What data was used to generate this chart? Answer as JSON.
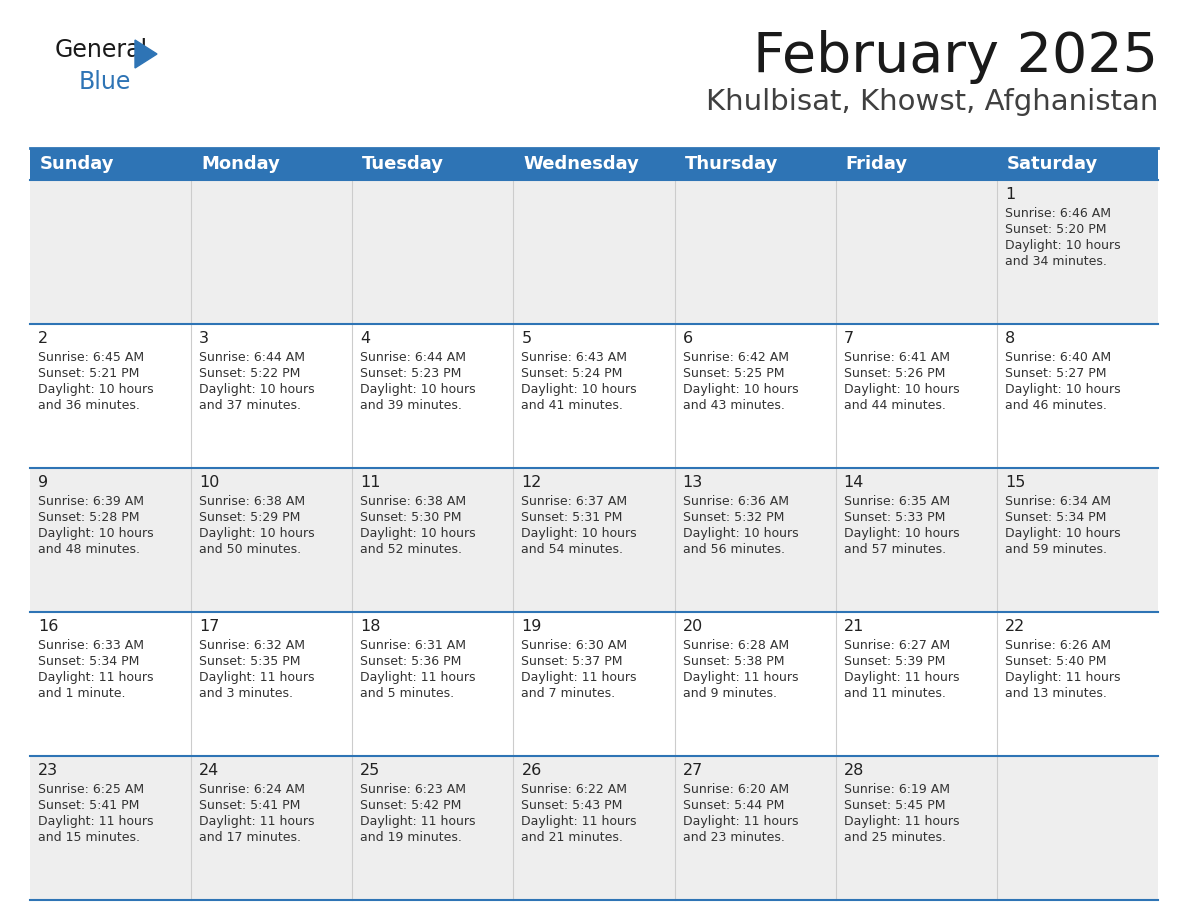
{
  "title": "February 2025",
  "subtitle": "Khulbisat, Khowst, Afghanistan",
  "header_bg": "#2E74B5",
  "header_text_color": "#FFFFFF",
  "day_names": [
    "Sunday",
    "Monday",
    "Tuesday",
    "Wednesday",
    "Thursday",
    "Friday",
    "Saturday"
  ],
  "row0_bg": "#EEEEEE",
  "row1_bg": "#FFFFFF",
  "row2_bg": "#EEEEEE",
  "row3_bg": "#FFFFFF",
  "row4_bg": "#EEEEEE",
  "border_color": "#2E74B5",
  "cell_divider_color": "#CCCCCC",
  "days": [
    {
      "day": 1,
      "col": 6,
      "row": 0,
      "sunrise": "6:46 AM",
      "sunset": "5:20 PM",
      "daylight_h": "10 hours",
      "daylight_m": "34 minutes."
    },
    {
      "day": 2,
      "col": 0,
      "row": 1,
      "sunrise": "6:45 AM",
      "sunset": "5:21 PM",
      "daylight_h": "10 hours",
      "daylight_m": "36 minutes."
    },
    {
      "day": 3,
      "col": 1,
      "row": 1,
      "sunrise": "6:44 AM",
      "sunset": "5:22 PM",
      "daylight_h": "10 hours",
      "daylight_m": "37 minutes."
    },
    {
      "day": 4,
      "col": 2,
      "row": 1,
      "sunrise": "6:44 AM",
      "sunset": "5:23 PM",
      "daylight_h": "10 hours",
      "daylight_m": "39 minutes."
    },
    {
      "day": 5,
      "col": 3,
      "row": 1,
      "sunrise": "6:43 AM",
      "sunset": "5:24 PM",
      "daylight_h": "10 hours",
      "daylight_m": "41 minutes."
    },
    {
      "day": 6,
      "col": 4,
      "row": 1,
      "sunrise": "6:42 AM",
      "sunset": "5:25 PM",
      "daylight_h": "10 hours",
      "daylight_m": "43 minutes."
    },
    {
      "day": 7,
      "col": 5,
      "row": 1,
      "sunrise": "6:41 AM",
      "sunset": "5:26 PM",
      "daylight_h": "10 hours",
      "daylight_m": "44 minutes."
    },
    {
      "day": 8,
      "col": 6,
      "row": 1,
      "sunrise": "6:40 AM",
      "sunset": "5:27 PM",
      "daylight_h": "10 hours",
      "daylight_m": "46 minutes."
    },
    {
      "day": 9,
      "col": 0,
      "row": 2,
      "sunrise": "6:39 AM",
      "sunset": "5:28 PM",
      "daylight_h": "10 hours",
      "daylight_m": "48 minutes."
    },
    {
      "day": 10,
      "col": 1,
      "row": 2,
      "sunrise": "6:38 AM",
      "sunset": "5:29 PM",
      "daylight_h": "10 hours",
      "daylight_m": "50 minutes."
    },
    {
      "day": 11,
      "col": 2,
      "row": 2,
      "sunrise": "6:38 AM",
      "sunset": "5:30 PM",
      "daylight_h": "10 hours",
      "daylight_m": "52 minutes."
    },
    {
      "day": 12,
      "col": 3,
      "row": 2,
      "sunrise": "6:37 AM",
      "sunset": "5:31 PM",
      "daylight_h": "10 hours",
      "daylight_m": "54 minutes."
    },
    {
      "day": 13,
      "col": 4,
      "row": 2,
      "sunrise": "6:36 AM",
      "sunset": "5:32 PM",
      "daylight_h": "10 hours",
      "daylight_m": "56 minutes."
    },
    {
      "day": 14,
      "col": 5,
      "row": 2,
      "sunrise": "6:35 AM",
      "sunset": "5:33 PM",
      "daylight_h": "10 hours",
      "daylight_m": "57 minutes."
    },
    {
      "day": 15,
      "col": 6,
      "row": 2,
      "sunrise": "6:34 AM",
      "sunset": "5:34 PM",
      "daylight_h": "10 hours",
      "daylight_m": "59 minutes."
    },
    {
      "day": 16,
      "col": 0,
      "row": 3,
      "sunrise": "6:33 AM",
      "sunset": "5:34 PM",
      "daylight_h": "11 hours",
      "daylight_m": "1 minute."
    },
    {
      "day": 17,
      "col": 1,
      "row": 3,
      "sunrise": "6:32 AM",
      "sunset": "5:35 PM",
      "daylight_h": "11 hours",
      "daylight_m": "3 minutes."
    },
    {
      "day": 18,
      "col": 2,
      "row": 3,
      "sunrise": "6:31 AM",
      "sunset": "5:36 PM",
      "daylight_h": "11 hours",
      "daylight_m": "5 minutes."
    },
    {
      "day": 19,
      "col": 3,
      "row": 3,
      "sunrise": "6:30 AM",
      "sunset": "5:37 PM",
      "daylight_h": "11 hours",
      "daylight_m": "7 minutes."
    },
    {
      "day": 20,
      "col": 4,
      "row": 3,
      "sunrise": "6:28 AM",
      "sunset": "5:38 PM",
      "daylight_h": "11 hours",
      "daylight_m": "9 minutes."
    },
    {
      "day": 21,
      "col": 5,
      "row": 3,
      "sunrise": "6:27 AM",
      "sunset": "5:39 PM",
      "daylight_h": "11 hours",
      "daylight_m": "11 minutes."
    },
    {
      "day": 22,
      "col": 6,
      "row": 3,
      "sunrise": "6:26 AM",
      "sunset": "5:40 PM",
      "daylight_h": "11 hours",
      "daylight_m": "13 minutes."
    },
    {
      "day": 23,
      "col": 0,
      "row": 4,
      "sunrise": "6:25 AM",
      "sunset": "5:41 PM",
      "daylight_h": "11 hours",
      "daylight_m": "15 minutes."
    },
    {
      "day": 24,
      "col": 1,
      "row": 4,
      "sunrise": "6:24 AM",
      "sunset": "5:41 PM",
      "daylight_h": "11 hours",
      "daylight_m": "17 minutes."
    },
    {
      "day": 25,
      "col": 2,
      "row": 4,
      "sunrise": "6:23 AM",
      "sunset": "5:42 PM",
      "daylight_h": "11 hours",
      "daylight_m": "19 minutes."
    },
    {
      "day": 26,
      "col": 3,
      "row": 4,
      "sunrise": "6:22 AM",
      "sunset": "5:43 PM",
      "daylight_h": "11 hours",
      "daylight_m": "21 minutes."
    },
    {
      "day": 27,
      "col": 4,
      "row": 4,
      "sunrise": "6:20 AM",
      "sunset": "5:44 PM",
      "daylight_h": "11 hours",
      "daylight_m": "23 minutes."
    },
    {
      "day": 28,
      "col": 5,
      "row": 4,
      "sunrise": "6:19 AM",
      "sunset": "5:45 PM",
      "daylight_h": "11 hours",
      "daylight_m": "25 minutes."
    }
  ],
  "num_rows": 5,
  "num_cols": 7,
  "fig_width": 11.88,
  "fig_height": 9.18,
  "dpi": 100
}
